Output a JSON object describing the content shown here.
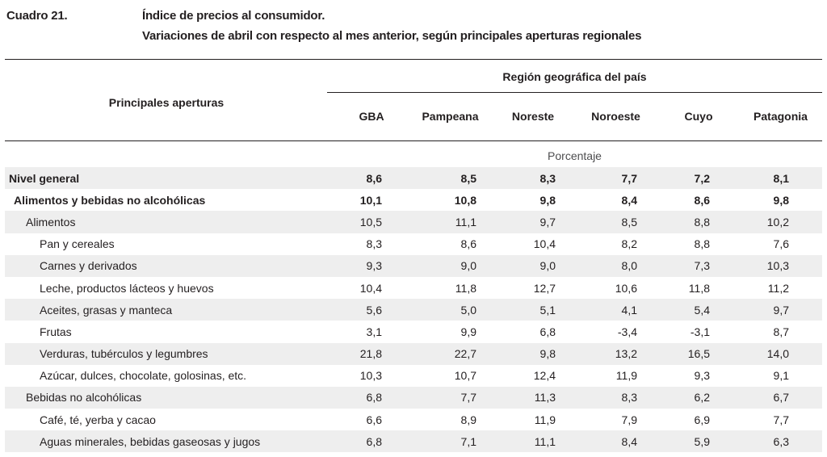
{
  "header": {
    "label": "Cuadro 21.",
    "title": "Índice de precios al consumidor.",
    "subtitle": "Variaciones de abril con respecto al mes anterior, según principales aperturas regionales"
  },
  "table": {
    "stub_header": "Principales aperturas",
    "group_header": "Región geográfica del país",
    "columns": [
      "GBA",
      "Pampeana",
      "Noreste",
      "Noroeste",
      "Cuyo",
      "Patagonia"
    ],
    "unit": "Porcentaje",
    "rows": [
      {
        "label": "Nivel general",
        "level": 0,
        "values": [
          "8,6",
          "8,5",
          "8,3",
          "7,7",
          "7,2",
          "8,1"
        ]
      },
      {
        "label": "Alimentos y bebidas no alcohólicas",
        "level": 1,
        "values": [
          "10,1",
          "10,8",
          "9,8",
          "8,4",
          "8,6",
          "9,8"
        ]
      },
      {
        "label": "Alimentos",
        "level": 2,
        "values": [
          "10,5",
          "11,1",
          "9,7",
          "8,5",
          "8,8",
          "10,2"
        ]
      },
      {
        "label": "Pan y cereales",
        "level": 3,
        "values": [
          "8,3",
          "8,6",
          "10,4",
          "8,2",
          "8,8",
          "7,6"
        ]
      },
      {
        "label": "Carnes y derivados",
        "level": 3,
        "values": [
          "9,3",
          "9,0",
          "9,0",
          "8,0",
          "7,3",
          "10,3"
        ]
      },
      {
        "label": "Leche, productos lácteos y huevos",
        "level": 3,
        "values": [
          "10,4",
          "11,8",
          "12,7",
          "10,6",
          "11,8",
          "11,2"
        ]
      },
      {
        "label": "Aceites, grasas y manteca",
        "level": 3,
        "values": [
          "5,6",
          "5,0",
          "5,1",
          "4,1",
          "5,4",
          "9,7"
        ]
      },
      {
        "label": "Frutas",
        "level": 3,
        "values": [
          "3,1",
          "9,9",
          "6,8",
          "-3,4",
          "-3,1",
          "8,7"
        ]
      },
      {
        "label": "Verduras, tubérculos y legumbres",
        "level": 3,
        "values": [
          "21,8",
          "22,7",
          "9,8",
          "13,2",
          "16,5",
          "14,0"
        ]
      },
      {
        "label": "Azúcar, dulces, chocolate, golosinas, etc.",
        "level": 3,
        "values": [
          "10,3",
          "10,7",
          "12,4",
          "11,9",
          "9,3",
          "9,1"
        ]
      },
      {
        "label": "Bebidas no alcohólicas",
        "level": 2,
        "values": [
          "6,8",
          "7,7",
          "11,3",
          "8,3",
          "6,2",
          "6,7"
        ]
      },
      {
        "label": "Café, té, yerba y cacao",
        "level": 3,
        "values": [
          "6,6",
          "8,9",
          "11,9",
          "7,9",
          "6,9",
          "7,7"
        ]
      },
      {
        "label": "Aguas minerales, bebidas gaseosas y jugos",
        "level": 3,
        "values": [
          "6,8",
          "7,1",
          "11,1",
          "8,4",
          "5,9",
          "6,3"
        ]
      }
    ]
  }
}
